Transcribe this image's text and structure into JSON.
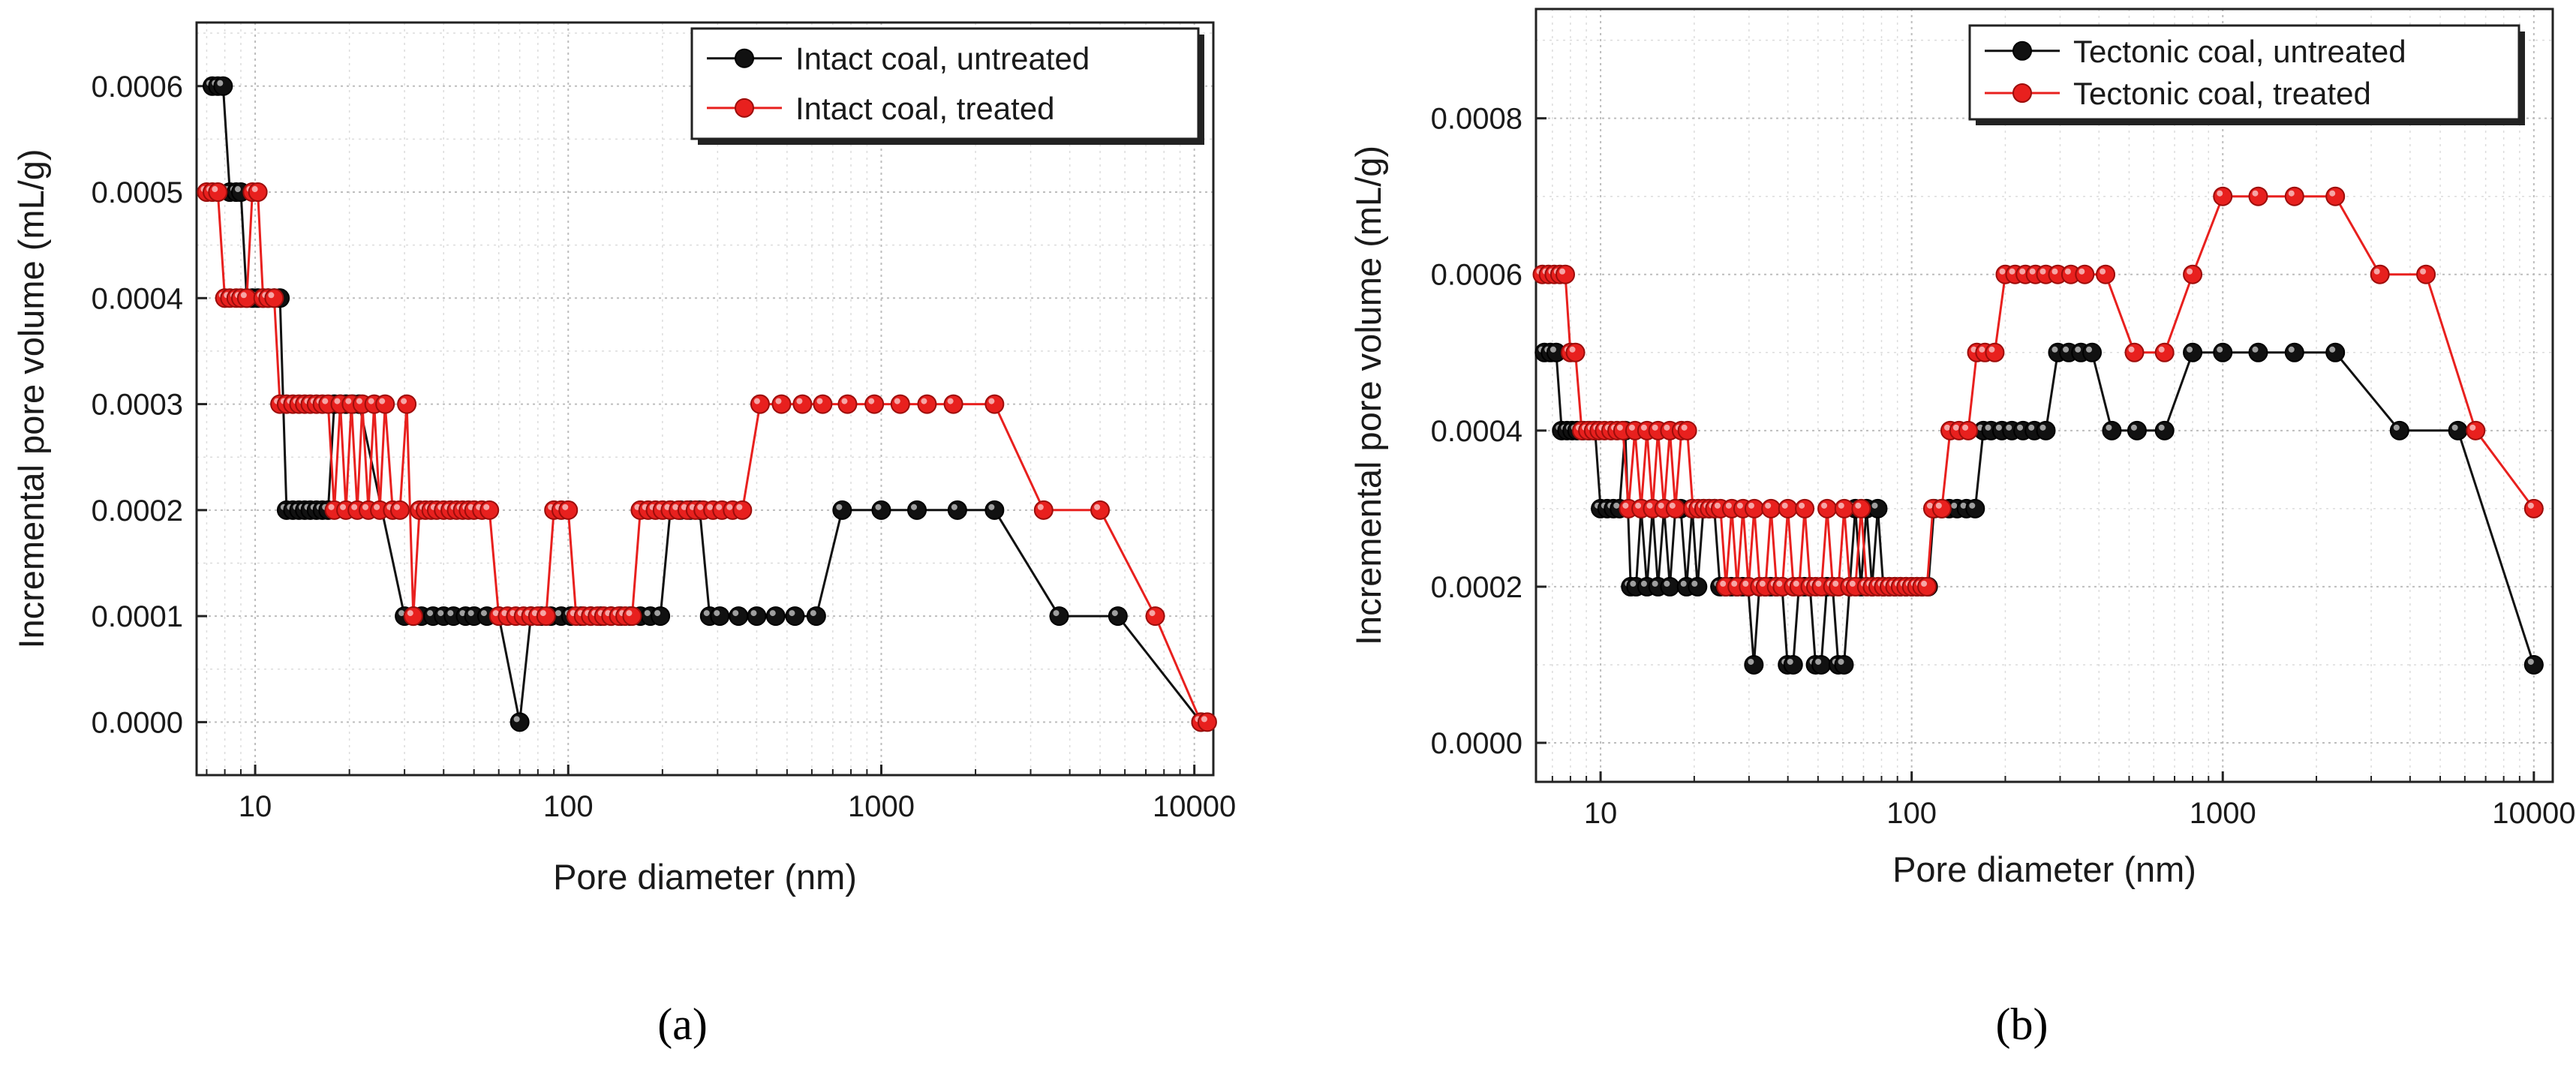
{
  "chart_data": [
    {
      "type": "line",
      "panel_label": "(a)",
      "title": "",
      "xlabel": "Pore diameter (nm)",
      "ylabel": "Incremental pore volume (mL/g)",
      "xscale": "log",
      "xlim": [
        6.5,
        11500
      ],
      "ylim": [
        -5e-05,
        0.00066
      ],
      "x_ticks": [
        10,
        100,
        1000,
        10000
      ],
      "x_tick_labels": [
        "10",
        "100",
        "1000",
        "10000"
      ],
      "y_ticks": [
        0.0,
        0.0001,
        0.0002,
        0.0003,
        0.0004,
        0.0005,
        0.0006
      ],
      "y_tick_labels": [
        "0.0000",
        "0.0001",
        "0.0002",
        "0.0003",
        "0.0004",
        "0.0005",
        "0.0006"
      ],
      "grid": true,
      "legend_position": "top-right",
      "series": [
        {
          "name": "Intact coal, untreated",
          "color": "#111111",
          "x": [
            7.3,
            7.6,
            7.9,
            8.3,
            8.7,
            9.0,
            9.4,
            9.8,
            10.2,
            10.6,
            11.0,
            11.5,
            12.0,
            12.6,
            13.2,
            13.8,
            14.4,
            15.0,
            15.7,
            16.4,
            17.1,
            17.9,
            18.7,
            19.5,
            20.5,
            21.5,
            30,
            32,
            34,
            37,
            40,
            43,
            47,
            50,
            55,
            60,
            70,
            76,
            82,
            88,
            95,
            102,
            110,
            118,
            127,
            137,
            147,
            158,
            170,
            183,
            197,
            212,
            228,
            245,
            263,
            283,
            305,
            350,
            400,
            460,
            530,
            620,
            750,
            1000,
            1300,
            1750,
            2300,
            3700,
            5700,
            10500
          ],
          "values": [
            0.0006,
            0.0006,
            0.0006,
            0.0005,
            0.0005,
            0.0005,
            0.0004,
            0.0004,
            0.0004,
            0.0004,
            0.0004,
            0.0004,
            0.0004,
            0.0002,
            0.0002,
            0.0002,
            0.0002,
            0.0002,
            0.0002,
            0.0002,
            0.0002,
            0.0003,
            0.0003,
            0.0003,
            0.0003,
            0.0003,
            0.0001,
            0.0001,
            0.0001,
            0.0001,
            0.0001,
            0.0001,
            0.0001,
            0.0001,
            0.0001,
            0.0001,
            0.0,
            0.0001,
            0.0001,
            0.0001,
            0.0001,
            0.0001,
            0.0001,
            0.0001,
            0.0001,
            0.0001,
            0.0001,
            0.0001,
            0.0001,
            0.0001,
            0.0001,
            0.0002,
            0.0002,
            0.0002,
            0.0002,
            0.0001,
            0.0001,
            0.0001,
            0.0001,
            0.0001,
            0.0001,
            0.0001,
            0.0002,
            0.0002,
            0.0002,
            0.0002,
            0.0002,
            0.0001,
            0.0001,
            0.0
          ]
        },
        {
          "name": "Intact coal, treated",
          "color": "#e8201e",
          "x": [
            7.0,
            7.3,
            7.6,
            8.0,
            8.3,
            8.7,
            9.0,
            9.4,
            9.8,
            10.2,
            10.6,
            11.0,
            11.5,
            12.0,
            12.6,
            13.2,
            13.8,
            14.4,
            15.0,
            15.7,
            16.4,
            17.1,
            17.9,
            18.7,
            19.5,
            20.3,
            21.2,
            22.0,
            23.0,
            24.0,
            25.0,
            26.0,
            27.5,
            29.0,
            30.5,
            32.0,
            33.5,
            35.0,
            36.5,
            38.0,
            40.0,
            42.0,
            44.0,
            46.0,
            48.0,
            50.0,
            53.0,
            56.0,
            60,
            64,
            68,
            72,
            76,
            80,
            85,
            90,
            95,
            100,
            106,
            112,
            118,
            124,
            130,
            137,
            145,
            152,
            160,
            170,
            180,
            190,
            200,
            212,
            225,
            240,
            255,
            270,
            290,
            310,
            335,
            360,
            410,
            480,
            560,
            650,
            780,
            950,
            1150,
            1400,
            1700,
            2300,
            3300,
            5000,
            7500,
            10500,
            11000
          ],
          "values": [
            0.0005,
            0.0005,
            0.0005,
            0.0004,
            0.0004,
            0.0004,
            0.0004,
            0.0004,
            0.0005,
            0.0005,
            0.0004,
            0.0004,
            0.0004,
            0.0003,
            0.0003,
            0.0003,
            0.0003,
            0.0003,
            0.0003,
            0.0003,
            0.0003,
            0.0003,
            0.0002,
            0.0003,
            0.0002,
            0.0003,
            0.0002,
            0.0003,
            0.0002,
            0.0003,
            0.0002,
            0.0003,
            0.0002,
            0.0002,
            0.0003,
            0.0001,
            0.0002,
            0.0002,
            0.0002,
            0.0002,
            0.0002,
            0.0002,
            0.0002,
            0.0002,
            0.0002,
            0.0002,
            0.0002,
            0.0002,
            0.0001,
            0.0001,
            0.0001,
            0.0001,
            0.0001,
            0.0001,
            0.0001,
            0.0002,
            0.0002,
            0.0002,
            0.0001,
            0.0001,
            0.0001,
            0.0001,
            0.0001,
            0.0001,
            0.0001,
            0.0001,
            0.0001,
            0.0002,
            0.0002,
            0.0002,
            0.0002,
            0.0002,
            0.0002,
            0.0002,
            0.0002,
            0.0002,
            0.0002,
            0.0002,
            0.0002,
            0.0002,
            0.0003,
            0.0003,
            0.0003,
            0.0003,
            0.0003,
            0.0003,
            0.0003,
            0.0003,
            0.0003,
            0.0003,
            0.0002,
            0.0002,
            0.0001,
            0.0,
            0.0
          ]
        }
      ]
    },
    {
      "type": "line",
      "panel_label": "(b)",
      "title": "",
      "xlabel": "Pore diameter (nm)",
      "ylabel": "Incremental pore volume (mL/g)",
      "xscale": "log",
      "xlim": [
        6.2,
        11500
      ],
      "ylim": [
        -5e-05,
        0.00094
      ],
      "x_ticks": [
        10,
        100,
        1000,
        10000
      ],
      "x_tick_labels": [
        "10",
        "100",
        "1000",
        "10000"
      ],
      "y_ticks": [
        0.0,
        0.0002,
        0.0004,
        0.0006,
        0.0008
      ],
      "y_tick_labels": [
        "0.0000",
        "0.0002",
        "0.0004",
        "0.0006",
        "0.0008"
      ],
      "grid": true,
      "legend_position": "top-right",
      "series": [
        {
          "name": "Tectonic coal, untreated",
          "color": "#111111",
          "x": [
            6.6,
            6.9,
            7.2,
            7.5,
            7.8,
            8.1,
            8.4,
            8.8,
            9.2,
            9.6,
            10.0,
            10.5,
            11.0,
            11.5,
            12.0,
            12.5,
            13.0,
            13.5,
            14.1,
            14.7,
            15.3,
            16.0,
            16.7,
            17.4,
            18.1,
            18.9,
            19.7,
            20.5,
            21.4,
            22.3,
            23.2,
            24.2,
            25.2,
            26.3,
            27.4,
            28.6,
            29.8,
            31.1,
            32.4,
            33.8,
            35.2,
            36.7,
            38.3,
            39.9,
            41.6,
            43.4,
            45.2,
            47.1,
            49.1,
            51.2,
            53.4,
            55.7,
            58.1,
            60.6,
            63.2,
            65.9,
            68.7,
            71.6,
            74.6,
            77.8,
            81.1,
            84.6,
            88.2,
            92.0,
            95.9,
            100,
            104,
            108,
            113,
            118,
            125,
            132,
            140,
            150,
            160,
            170,
            180,
            195,
            210,
            228,
            248,
            270,
            295,
            320,
            350,
            380,
            440,
            530,
            650,
            800,
            1000,
            1300,
            1700,
            2300,
            3700,
            5700,
            10000
          ],
          "values": [
            0.0005,
            0.0005,
            0.0005,
            0.0004,
            0.0004,
            0.0004,
            0.0004,
            0.0004,
            0.0004,
            0.0004,
            0.0003,
            0.0003,
            0.0003,
            0.0003,
            0.0004,
            0.0002,
            0.0002,
            0.0003,
            0.0002,
            0.0003,
            0.0002,
            0.0003,
            0.0002,
            0.0003,
            0.0003,
            0.0002,
            0.0003,
            0.0002,
            0.0003,
            0.0003,
            0.0003,
            0.0002,
            0.0002,
            0.0002,
            0.0002,
            0.0002,
            0.0002,
            0.0001,
            0.0002,
            0.0002,
            0.0002,
            0.0002,
            0.0002,
            0.0001,
            0.0001,
            0.0002,
            0.0002,
            0.0002,
            0.0001,
            0.0001,
            0.0002,
            0.0002,
            0.0001,
            0.0001,
            0.0002,
            0.0003,
            0.0002,
            0.0003,
            0.0002,
            0.0003,
            0.0002,
            0.0002,
            0.0002,
            0.0002,
            0.0002,
            0.0002,
            0.0002,
            0.0002,
            0.0002,
            0.0003,
            0.0003,
            0.0003,
            0.0003,
            0.0003,
            0.0003,
            0.0004,
            0.0004,
            0.0004,
            0.0004,
            0.0004,
            0.0004,
            0.0004,
            0.0005,
            0.0005,
            0.0005,
            0.0005,
            0.0004,
            0.0004,
            0.0004,
            0.0005,
            0.0005,
            0.0005,
            0.0005,
            0.0005,
            0.0004,
            0.0004,
            0.0001
          ]
        },
        {
          "name": "Tectonic coal, treated",
          "color": "#e8201e",
          "x": [
            6.5,
            6.8,
            7.1,
            7.4,
            7.7,
            8.0,
            8.3,
            8.7,
            9.1,
            9.5,
            9.9,
            10.3,
            10.8,
            11.3,
            11.8,
            12.3,
            12.9,
            13.5,
            14.1,
            14.7,
            15.3,
            16.0,
            16.7,
            17.4,
            18.2,
            19.0,
            19.8,
            20.6,
            21.5,
            22.4,
            23.3,
            24.3,
            25.3,
            26.4,
            27.5,
            28.7,
            29.9,
            31.2,
            32.5,
            33.9,
            35.3,
            36.8,
            38.4,
            40.0,
            41.7,
            43.5,
            45.3,
            47.2,
            49.2,
            51.3,
            53.5,
            55.8,
            58.2,
            60.7,
            63.3,
            66.0,
            68.8,
            71.7,
            74.8,
            78.0,
            81.3,
            84.8,
            88.4,
            92.1,
            96.0,
            100,
            104,
            108,
            112,
            117,
            125,
            133,
            142,
            152,
            162,
            172,
            185,
            200,
            215,
            232,
            250,
            270,
            295,
            325,
            360,
            420,
            520,
            650,
            800,
            1000,
            1300,
            1700,
            2300,
            3200,
            4500,
            6500,
            10000
          ],
          "values": [
            0.0006,
            0.0006,
            0.0006,
            0.0006,
            0.0006,
            0.0005,
            0.0005,
            0.0004,
            0.0004,
            0.0004,
            0.0004,
            0.0004,
            0.0004,
            0.0004,
            0.0004,
            0.0003,
            0.0004,
            0.0003,
            0.0004,
            0.0003,
            0.0004,
            0.0003,
            0.0004,
            0.0003,
            0.0004,
            0.0004,
            0.0003,
            0.0003,
            0.0003,
            0.0003,
            0.0003,
            0.0003,
            0.0002,
            0.0003,
            0.0002,
            0.0003,
            0.0002,
            0.0003,
            0.0002,
            0.0002,
            0.0003,
            0.0002,
            0.0002,
            0.0003,
            0.0002,
            0.0002,
            0.0003,
            0.0002,
            0.0002,
            0.0002,
            0.0003,
            0.0002,
            0.0002,
            0.0003,
            0.0002,
            0.0002,
            0.0003,
            0.0002,
            0.0002,
            0.0002,
            0.0002,
            0.0002,
            0.0002,
            0.0002,
            0.0002,
            0.0002,
            0.0002,
            0.0002,
            0.0002,
            0.0003,
            0.0003,
            0.0004,
            0.0004,
            0.0004,
            0.0005,
            0.0005,
            0.0005,
            0.0006,
            0.0006,
            0.0006,
            0.0006,
            0.0006,
            0.0006,
            0.0006,
            0.0006,
            0.0006,
            0.0005,
            0.0005,
            0.0006,
            0.0007,
            0.0007,
            0.0007,
            0.0007,
            0.0006,
            0.0006,
            0.0004,
            0.0003
          ]
        }
      ]
    }
  ]
}
